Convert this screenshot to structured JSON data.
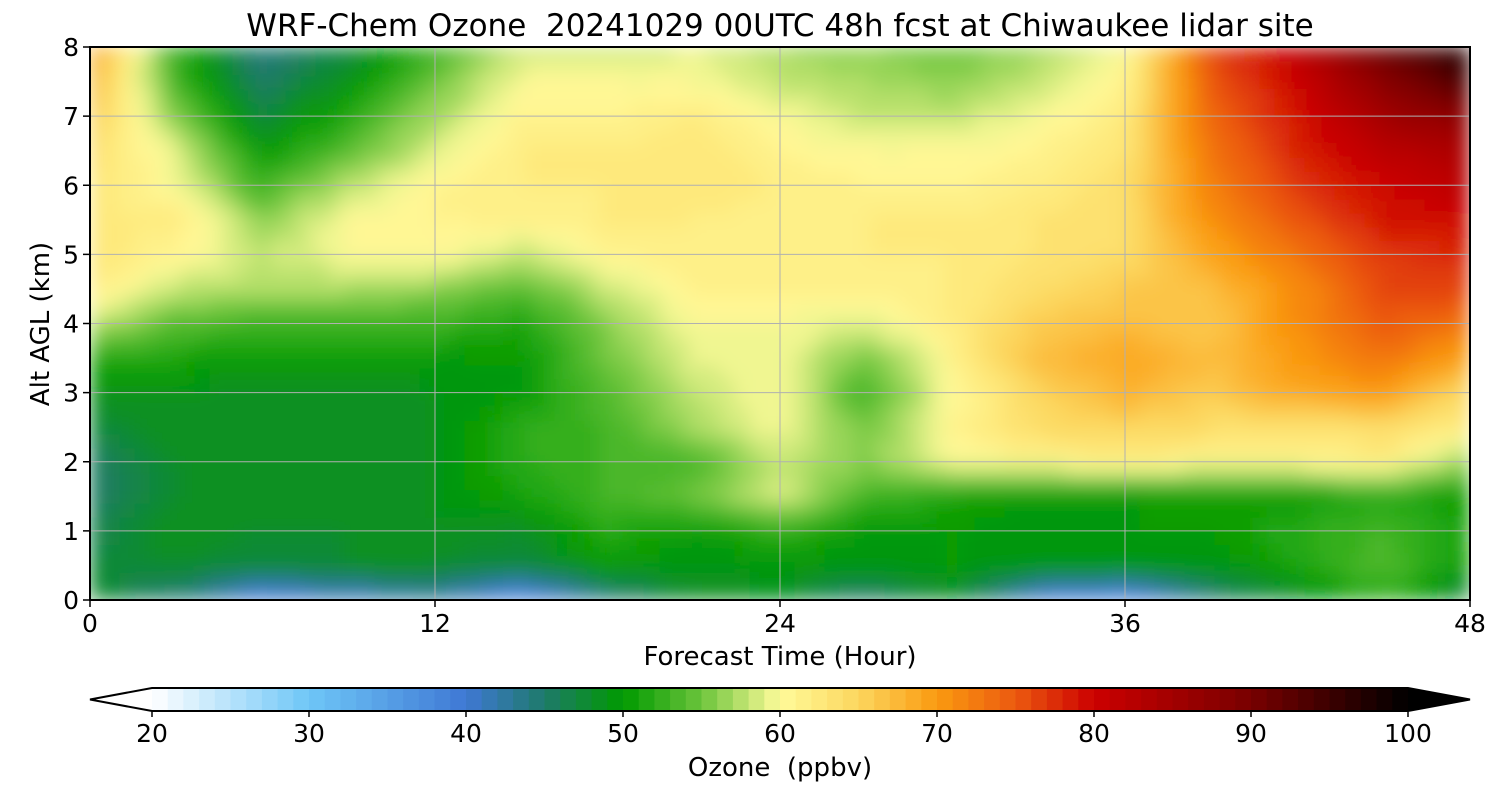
{
  "chart_data": {
    "type": "heatmap",
    "title": "WRF-Chem Ozone  20241029 00UTC 48h fcst at Chiwaukee lidar site",
    "xlabel": "Forecast Time (Hour)",
    "ylabel": "Alt AGL (km)",
    "xlim": [
      0,
      48
    ],
    "ylim": [
      0,
      8
    ],
    "xticks": [
      0,
      12,
      24,
      36,
      48
    ],
    "yticks": [
      0,
      1,
      2,
      3,
      4,
      5,
      6,
      7,
      8
    ],
    "grid": true,
    "x": [
      0,
      3,
      6,
      9,
      12,
      15,
      18,
      21,
      24,
      27,
      30,
      33,
      36,
      39,
      42,
      45,
      48
    ],
    "y": [
      0,
      0.5,
      1,
      1.5,
      2,
      2.5,
      3,
      3.5,
      4,
      4.5,
      5,
      5.5,
      6,
      6.5,
      7,
      7.5,
      8
    ],
    "z": [
      [
        48,
        44,
        38,
        40,
        42,
        36,
        43,
        48,
        48,
        44,
        48,
        38,
        36,
        44,
        48,
        52,
        46
      ],
      [
        47,
        48,
        47,
        48,
        48,
        47,
        50,
        49,
        50,
        49,
        50,
        49,
        49,
        49,
        51,
        54,
        50
      ],
      [
        46,
        49,
        48,
        48,
        49,
        48,
        52,
        50,
        52,
        50,
        50,
        49,
        50,
        50,
        52,
        53,
        51
      ],
      [
        45,
        48,
        48,
        48,
        49,
        51,
        53,
        55,
        59,
        53,
        51,
        50,
        50,
        50,
        50,
        52,
        50
      ],
      [
        45,
        48,
        49,
        48,
        49,
        52,
        53,
        53,
        58,
        56,
        60,
        61,
        62,
        61,
        61,
        62,
        56
      ],
      [
        47,
        49,
        48,
        48,
        49,
        52,
        53,
        57,
        60,
        55,
        61,
        64,
        65,
        64,
        63,
        64,
        62
      ],
      [
        49,
        49,
        48,
        48,
        49,
        50,
        54,
        58,
        60,
        53,
        60,
        65,
        68,
        66,
        69,
        70,
        64
      ],
      [
        52,
        51,
        50,
        50,
        50,
        50,
        55,
        59,
        60,
        55,
        61,
        67,
        69,
        67,
        70,
        73,
        69
      ],
      [
        58,
        54,
        53,
        53,
        53,
        51,
        56,
        60,
        60,
        59,
        62,
        66,
        67,
        66,
        71,
        75,
        73
      ],
      [
        62,
        58,
        57,
        57,
        56,
        54,
        58,
        61,
        61,
        61,
        62,
        64,
        66,
        67,
        71,
        76,
        76
      ],
      [
        63,
        61,
        58,
        60,
        61,
        58,
        61,
        62,
        62,
        62,
        62,
        63,
        64,
        69,
        73,
        77,
        78
      ],
      [
        62,
        62,
        56,
        60,
        61,
        61,
        62,
        62,
        61,
        62,
        62,
        63,
        64,
        71,
        75,
        79,
        80
      ],
      [
        63,
        60,
        53,
        58,
        61,
        62,
        62,
        63,
        62,
        61,
        61,
        62,
        64,
        72,
        77,
        80,
        82
      ],
      [
        64,
        59,
        50,
        54,
        59,
        62,
        62,
        63,
        61,
        60,
        60,
        61,
        63,
        73,
        78,
        82,
        84
      ],
      [
        66,
        56,
        47,
        52,
        57,
        61,
        61,
        62,
        60,
        58,
        58,
        60,
        62,
        74,
        79,
        85,
        88
      ],
      [
        68,
        53,
        45,
        49,
        55,
        60,
        60,
        60,
        58,
        57,
        56,
        58,
        61,
        75,
        80,
        88,
        94
      ],
      [
        70,
        52,
        44,
        47,
        52,
        58,
        58,
        59,
        57,
        56,
        55,
        57,
        60,
        76,
        82,
        92,
        98
      ]
    ],
    "colorbar": {
      "label": "Ozone  (ppbv)",
      "min": 20,
      "max": 100,
      "step": 1,
      "ticks": [
        20,
        30,
        40,
        50,
        60,
        70,
        80,
        90,
        100
      ],
      "extend": "both",
      "stops": [
        {
          "v": 20,
          "c": "#ffffff"
        },
        {
          "v": 30,
          "c": "#6ec6f7"
        },
        {
          "v": 40,
          "c": "#3f78d4"
        },
        {
          "v": 45,
          "c": "#1e7a6a"
        },
        {
          "v": 50,
          "c": "#009a00"
        },
        {
          "v": 55,
          "c": "#6cc43c"
        },
        {
          "v": 60,
          "c": "#fffb9a"
        },
        {
          "v": 65,
          "c": "#fcd65e"
        },
        {
          "v": 70,
          "c": "#fa9a10"
        },
        {
          "v": 75,
          "c": "#ec5a10"
        },
        {
          "v": 80,
          "c": "#cc0000"
        },
        {
          "v": 90,
          "c": "#780000"
        },
        {
          "v": 100,
          "c": "#000000"
        }
      ]
    }
  }
}
